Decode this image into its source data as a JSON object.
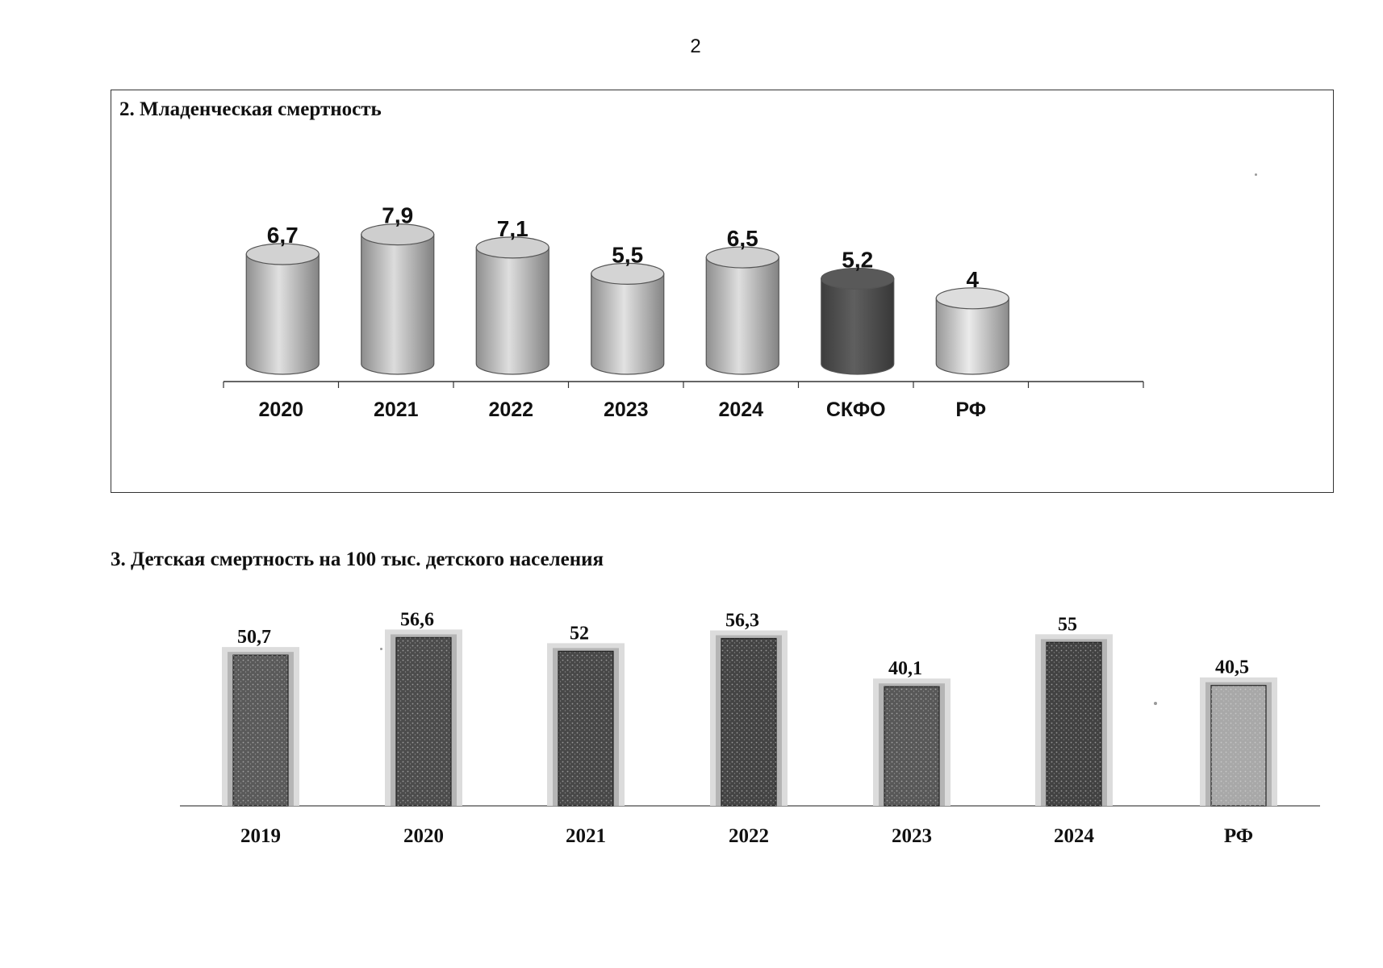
{
  "page": {
    "number": "2"
  },
  "chart_data": [
    {
      "type": "bar",
      "title": "2. Младенческая смертность",
      "categories": [
        "2020",
        "2021",
        "2022",
        "2023",
        "2024",
        "СКФО",
        "РФ"
      ],
      "values": [
        6.7,
        7.9,
        7.1,
        5.5,
        6.5,
        5.2,
        4
      ],
      "value_labels": [
        "6,7",
        "7,9",
        "7,1",
        "5,5",
        "6,5",
        "5,2",
        "4"
      ],
      "bar_shape": "cylinder",
      "colors": [
        "#c8c8c8",
        "#c4c4c4",
        "#c6c6c6",
        "#cacaca",
        "#c6c6c6",
        "#555555",
        "#d2d2d2"
      ],
      "grid": false,
      "legend": "none"
    },
    {
      "type": "bar",
      "title": "3. Детская смертность на 100 тыс. детского населения",
      "categories": [
        "2019",
        "2020",
        "2021",
        "2022",
        "2023",
        "2024",
        "РФ"
      ],
      "values": [
        50.7,
        56.6,
        52,
        56.3,
        40.1,
        55,
        40.5
      ],
      "value_labels": [
        "50,7",
        "56,6",
        "52",
        "56,3",
        "40,1",
        "55",
        "40,5"
      ],
      "colors": [
        "#5a5a5a",
        "#4c4c4c",
        "#484848",
        "#444444",
        "#585858",
        "#424242",
        "#a8a8a8"
      ],
      "grid": false,
      "legend": "none"
    }
  ]
}
